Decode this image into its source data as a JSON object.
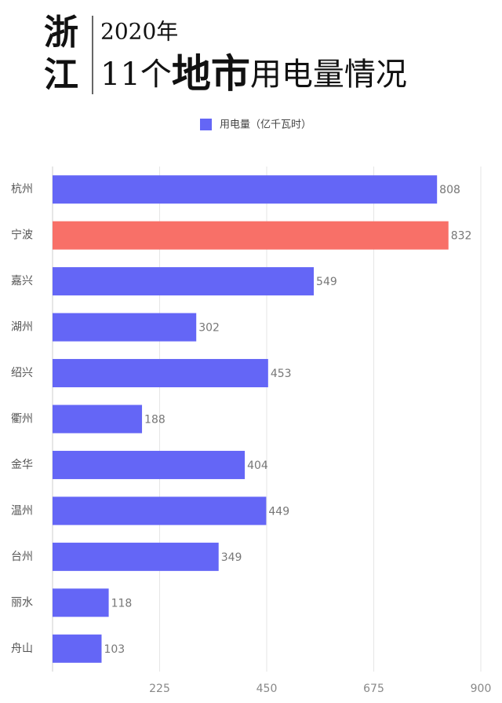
{
  "chart_data": {
    "type": "bar",
    "orientation": "horizontal",
    "title_region": "浙江",
    "title_year": "2020年",
    "title_parts": [
      "11个",
      "地市",
      "用电量情况"
    ],
    "categories": [
      "杭州",
      "宁波",
      "嘉兴",
      "湖州",
      "绍兴",
      "衢州",
      "金华",
      "温州",
      "台州",
      "丽水",
      "舟山"
    ],
    "series": [
      {
        "name": "用电量（亿千瓦时）",
        "color": "#6466f6",
        "values": [
          808,
          832,
          549,
          302,
          453,
          188,
          404,
          449,
          349,
          118,
          103
        ],
        "colors": [
          "#6466f6",
          "#f87068",
          "#6466f6",
          "#6466f6",
          "#6466f6",
          "#6466f6",
          "#6466f6",
          "#6466f6",
          "#6466f6",
          "#6466f6",
          "#6466f6"
        ]
      }
    ],
    "xlim": [
      0,
      900
    ],
    "xticks": [
      225,
      450,
      675,
      900
    ],
    "grid": true
  }
}
